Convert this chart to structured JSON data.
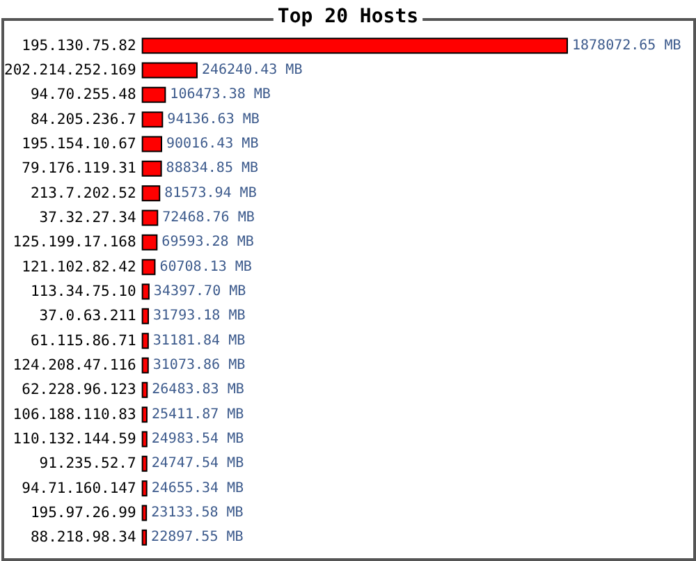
{
  "chart_data": {
    "type": "bar",
    "title": "Top 20 Hosts",
    "orientation": "horizontal",
    "color": "#ff0000",
    "categories": [
      "195.130.75.82",
      "202.214.252.169",
      "94.70.255.48",
      "84.205.236.7",
      "195.154.10.67",
      "79.176.119.31",
      "213.7.202.52",
      "37.32.27.34",
      "125.199.17.168",
      "121.102.82.42",
      "113.34.75.10",
      "37.0.63.211",
      "61.115.86.71",
      "124.208.47.116",
      "62.228.96.123",
      "106.188.110.83",
      "110.132.144.59",
      "91.235.52.7",
      "94.71.160.147",
      "195.97.26.99",
      "88.218.98.34"
    ],
    "values": [
      1878072.65,
      246240.43,
      106473.38,
      94136.63,
      90016.43,
      88834.85,
      81573.94,
      72468.76,
      69593.28,
      60708.13,
      34397.7,
      31793.18,
      31181.84,
      31073.86,
      26483.83,
      25411.87,
      24983.54,
      24747.54,
      24655.34,
      23133.58,
      22897.55
    ],
    "value_labels": [
      "1878072.65 MB",
      "246240.43 MB",
      "106473.38 MB",
      "94136.63 MB",
      "90016.43 MB",
      "88834.85 MB",
      "81573.94 MB",
      "72468.76 MB",
      "69593.28 MB",
      "60708.13 MB",
      "34397.70 MB",
      "31793.18 MB",
      "31181.84 MB",
      "31073.86 MB",
      "26483.83 MB",
      "25411.87 MB",
      "24983.54 MB",
      "24747.54 MB",
      "24655.34 MB",
      "23133.58 MB",
      "22897.55 MB"
    ]
  }
}
